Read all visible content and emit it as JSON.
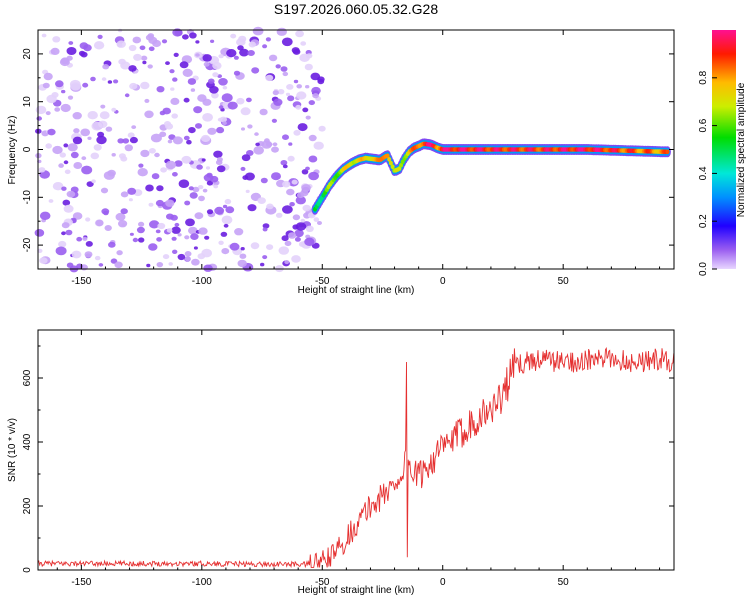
{
  "title": "S197.2026.060.05.32.G28",
  "chart_data": [
    {
      "type": "heatmap",
      "panel": "spectrogram",
      "xlabel": "Height of straight line (km)",
      "ylabel": "Frequency (Hz)",
      "xlim": [
        -168,
        96
      ],
      "ylim": [
        -25,
        25
      ],
      "xticks": [
        -150,
        -100,
        -50,
        0,
        50
      ],
      "yticks": [
        -20,
        -10,
        0,
        10,
        20
      ],
      "colorbar": {
        "label": "Normalized spectral amplitude",
        "range": [
          0,
          1
        ],
        "ticks": [
          0.0,
          0.2,
          0.4,
          0.6,
          0.8
        ]
      },
      "noise_region_x": [
        -168,
        -50
      ],
      "signal_trace": {
        "x": [
          -53,
          -50,
          -47,
          -44,
          -41,
          -38,
          -35,
          -32,
          -29,
          -26,
          -23,
          -20,
          -18,
          -16,
          -14,
          -12,
          -10,
          -8,
          -5,
          -2,
          0,
          20,
          40,
          60,
          80,
          94
        ],
        "freq": [
          -12.5,
          -10,
          -7.5,
          -5.5,
          -4,
          -3,
          -2.2,
          -1.8,
          -2,
          -2.2,
          -1.2,
          -4.5,
          -4,
          -2,
          -0.5,
          0.3,
          0.7,
          1.2,
          1,
          0.3,
          0,
          0,
          0,
          0,
          -0.3,
          -0.5
        ],
        "amplitude": [
          0.5,
          0.55,
          0.6,
          0.65,
          0.7,
          0.72,
          0.75,
          0.7,
          0.8,
          0.75,
          0.9,
          0.6,
          0.65,
          0.7,
          0.75,
          0.8,
          0.85,
          0.9,
          0.95,
          0.85,
          0.95,
          0.92,
          0.9,
          0.95,
          0.85,
          0.8
        ]
      }
    },
    {
      "type": "line",
      "panel": "snr",
      "xlabel": "Height of straight line (km)",
      "ylabel": "SNR (10 * v/v)",
      "xlim": [
        -168,
        96
      ],
      "ylim": [
        0,
        750
      ],
      "xticks": [
        -150,
        -100,
        -50,
        0,
        50
      ],
      "yticks": [
        0,
        200,
        400,
        600
      ],
      "series": [
        {
          "name": "SNR",
          "color": "#e53030",
          "x": [
            -168,
            -150,
            -125,
            -100,
            -75,
            -55,
            -50,
            -45,
            -40,
            -35,
            -30,
            -25,
            -20,
            -17,
            -15,
            -13,
            -10,
            -5,
            0,
            5,
            10,
            15,
            20,
            25,
            30,
            35,
            40,
            50,
            60,
            70,
            80,
            90,
            96
          ],
          "values": [
            20,
            20,
            20,
            20,
            18,
            18,
            25,
            50,
            100,
            150,
            200,
            230,
            270,
            300,
            350,
            310,
            290,
            340,
            380,
            410,
            450,
            480,
            500,
            550,
            640,
            650,
            660,
            650,
            655,
            660,
            650,
            660,
            650
          ],
          "spike": {
            "x": -15,
            "max": 650,
            "min": 40
          }
        }
      ]
    }
  ]
}
